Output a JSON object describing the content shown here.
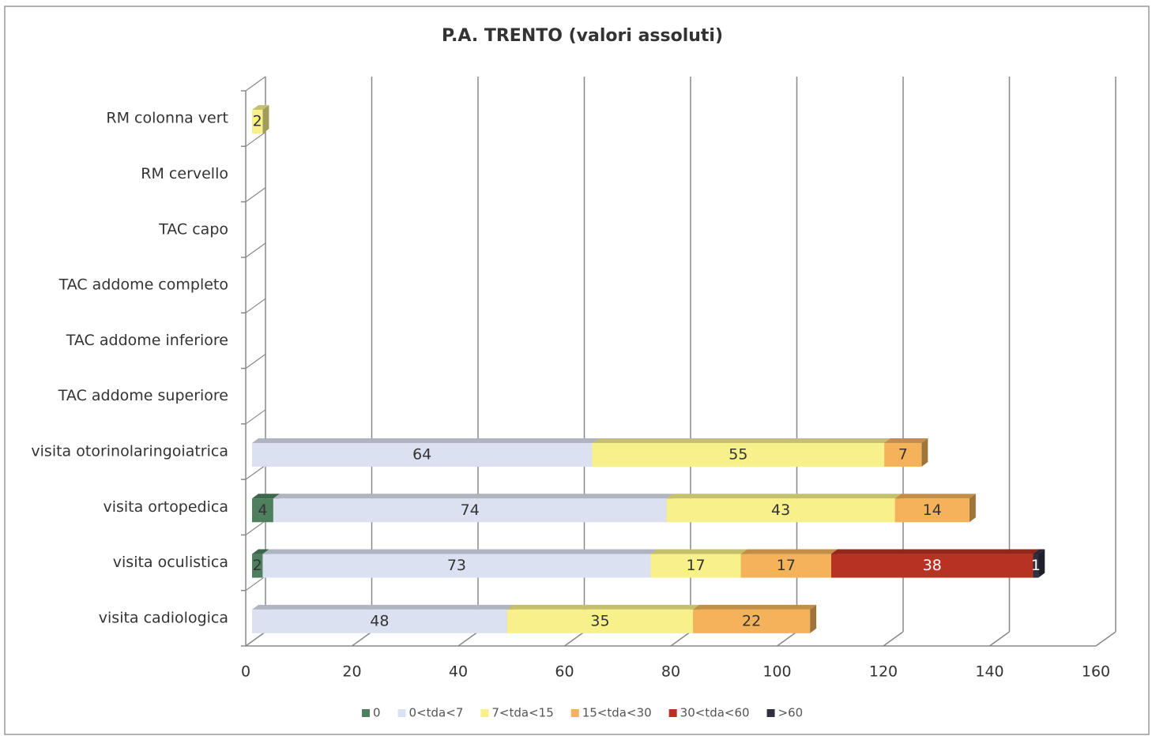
{
  "chart_data": {
    "type": "bar",
    "orientation": "horizontal",
    "stacked": true,
    "title": "P.A. TRENTO (valori assoluti)",
    "categories": [
      "RM colonna vert",
      "RM cervello",
      "TAC capo",
      "TAC addome completo",
      "TAC addome inferiore",
      "TAC addome superiore",
      "visita otorinolaringoiatrica",
      "visita ortopedica",
      "visita oculistica",
      "visita cadiologica"
    ],
    "series": [
      {
        "name": "0",
        "color": "#4e7f5e",
        "values": [
          null,
          null,
          null,
          null,
          null,
          null,
          null,
          4,
          2,
          null
        ]
      },
      {
        "name": "0<tda<7",
        "color": "#dbe1f1",
        "values": [
          null,
          null,
          null,
          null,
          null,
          null,
          64,
          74,
          73,
          48
        ]
      },
      {
        "name": "7<tda<15",
        "color": "#f8f08a",
        "values": [
          2,
          null,
          null,
          null,
          null,
          null,
          55,
          43,
          17,
          35
        ]
      },
      {
        "name": "15<tda<30",
        "color": "#f4b35a",
        "values": [
          null,
          null,
          null,
          null,
          null,
          null,
          7,
          14,
          17,
          22
        ]
      },
      {
        "name": "30<tda<60",
        "color": "#b73222",
        "values": [
          null,
          null,
          null,
          null,
          null,
          null,
          null,
          null,
          38,
          null
        ]
      },
      {
        "name": ">60",
        "color": "#2f3140",
        "values": [
          null,
          null,
          null,
          null,
          null,
          null,
          null,
          null,
          1,
          null
        ]
      }
    ],
    "xlim": [
      0,
      160
    ],
    "xticks": [
      0,
      20,
      40,
      60,
      80,
      100,
      120,
      140,
      160
    ],
    "grid": true,
    "legend": "bottom"
  }
}
